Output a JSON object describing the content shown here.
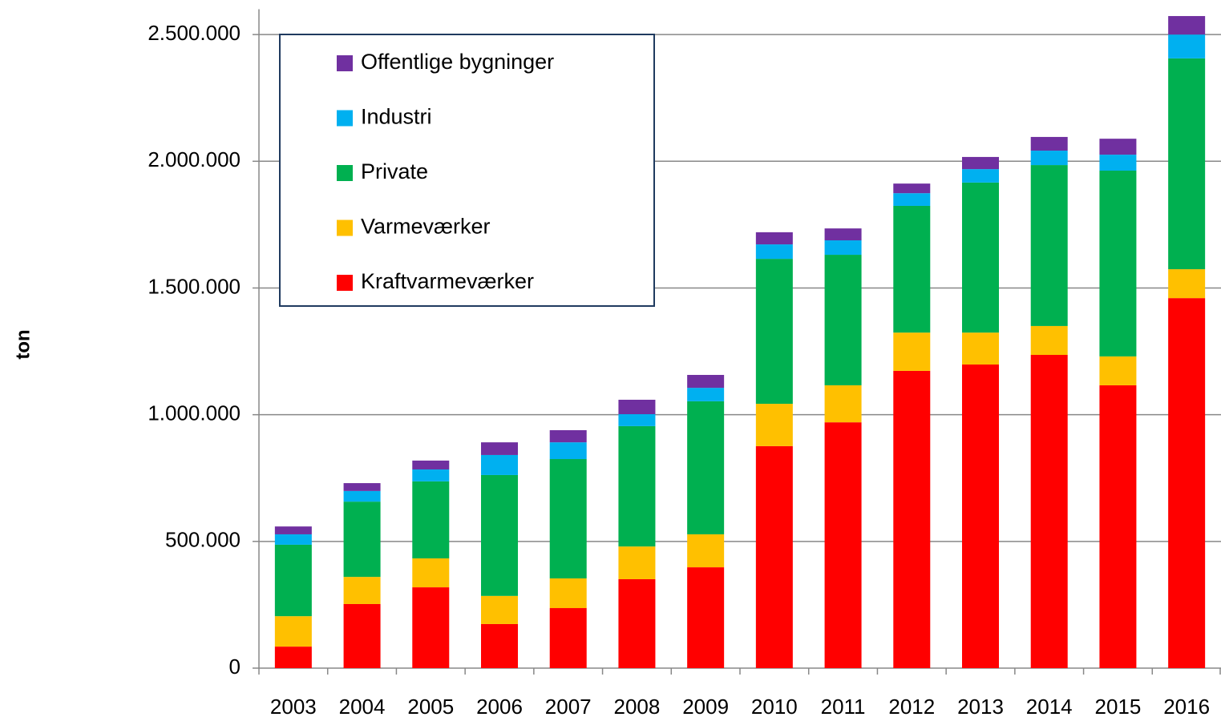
{
  "chart_data": {
    "type": "stacked_bar",
    "y_label": "ton",
    "categories": [
      "2003",
      "2004",
      "2005",
      "2006",
      "2007",
      "2008",
      "2009",
      "2010",
      "2011",
      "2012",
      "2013",
      "2014",
      "2015",
      "2016"
    ],
    "series": [
      {
        "name": "Kraftvarmeværker",
        "color": "#ff0000",
        "values": [
          85000,
          253000,
          319000,
          174000,
          237000,
          351000,
          398000,
          876000,
          970000,
          1173000,
          1198000,
          1236000,
          1116000,
          1460000
        ]
      },
      {
        "name": "Varmeværker",
        "color": "#ffc000",
        "values": [
          120000,
          107000,
          114000,
          111000,
          117000,
          129000,
          130000,
          167000,
          146000,
          151000,
          126000,
          114000,
          114000,
          114000
        ]
      },
      {
        "name": "Private",
        "color": "#00b050",
        "values": [
          282000,
          297000,
          304000,
          477000,
          471000,
          475000,
          525000,
          572000,
          515000,
          500000,
          592000,
          635000,
          733000,
          832000
        ]
      },
      {
        "name": "Industri",
        "color": "#00b0f0",
        "values": [
          41000,
          42000,
          47000,
          79000,
          66000,
          47000,
          53000,
          57000,
          57000,
          50000,
          53000,
          57000,
          63000,
          94000
        ]
      },
      {
        "name": "Offentlige bygninger",
        "color": "#7030a0",
        "values": [
          31000,
          31000,
          35000,
          50000,
          48000,
          57000,
          51000,
          48000,
          47000,
          38000,
          48000,
          54000,
          63000,
          73000
        ]
      }
    ],
    "ylim": [
      0,
      2600000
    ],
    "yticks": [
      0,
      {
        "value": 500000,
        "label": "500.000"
      },
      {
        "value": 1000000,
        "label": "1.000.000"
      },
      {
        "value": 1500000,
        "label": "1.500.000"
      },
      {
        "value": 2000000,
        "label": "2.000.000"
      },
      {
        "value": 2500000,
        "label": "2.500.000"
      }
    ],
    "grid": true,
    "legend": "upper left"
  }
}
